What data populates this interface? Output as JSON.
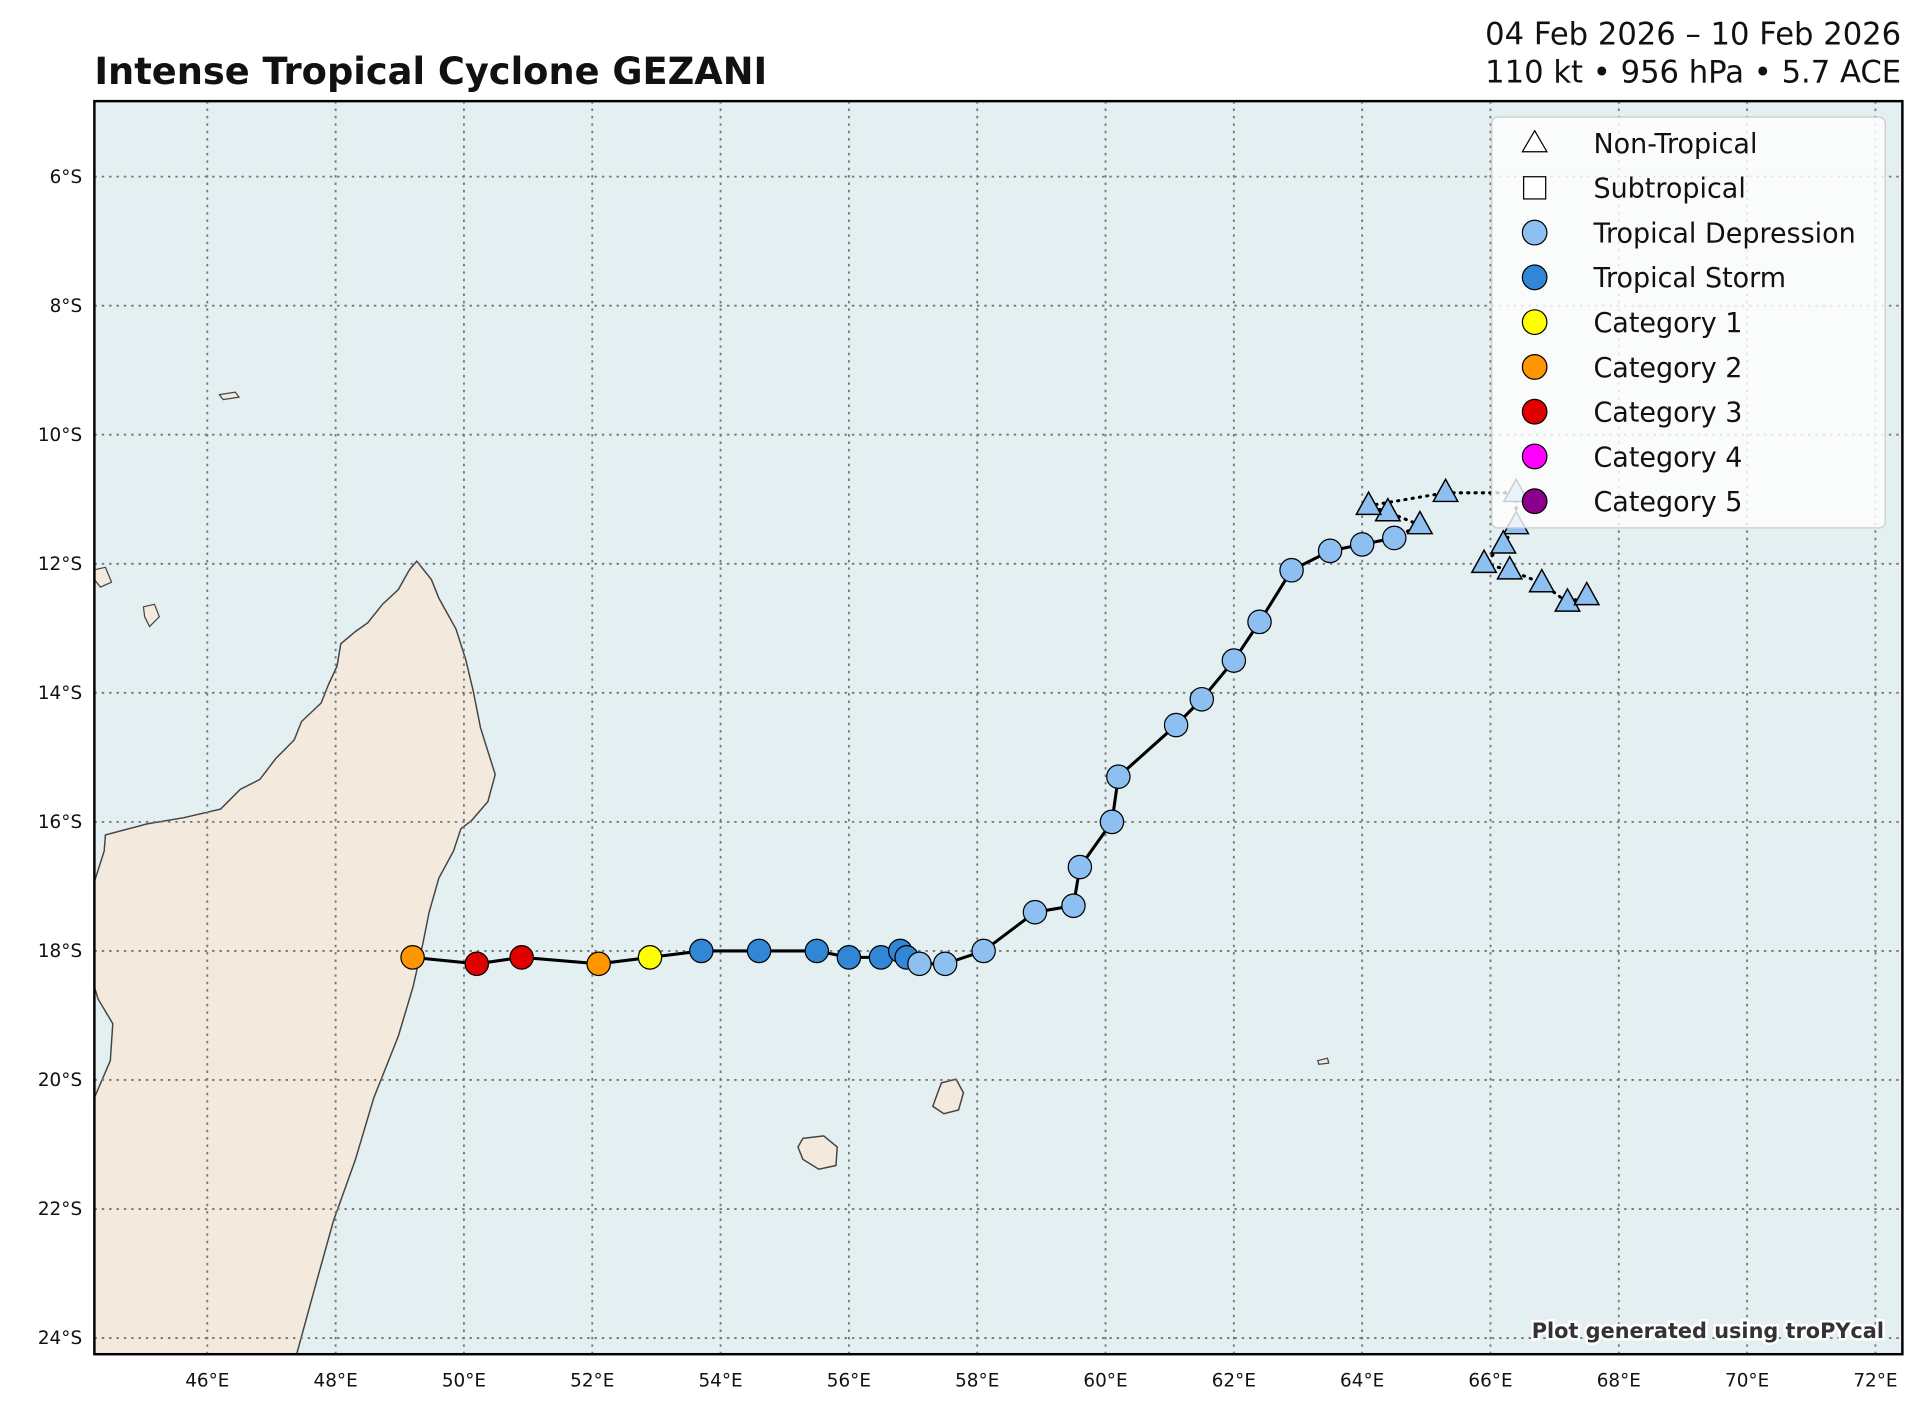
{
  "header": {
    "title": "Intense Tropical Cyclone GEZANI",
    "date_range": "04 Feb 2026 – 10 Feb 2026",
    "stats": "110 kt • 956 hPa • 5.7 ACE"
  },
  "credit": "Plot generated using troPYcal",
  "colors": {
    "ocean": "#e3eff1",
    "land": "#f3eadd",
    "track": "#000000"
  },
  "legend": [
    {
      "label": "Non-Tropical",
      "marker": "triangle",
      "color": "#ffffff"
    },
    {
      "label": "Subtropical",
      "marker": "square",
      "color": "#ffffff"
    },
    {
      "label": "Tropical Depression",
      "marker": "circle",
      "color": "#8dc0f0"
    },
    {
      "label": "Tropical Storm",
      "marker": "circle",
      "color": "#3186d6"
    },
    {
      "label": "Category 1",
      "marker": "circle",
      "color": "#ffff00"
    },
    {
      "label": "Category 2",
      "marker": "circle",
      "color": "#ff9600"
    },
    {
      "label": "Category 3",
      "marker": "circle",
      "color": "#e00000"
    },
    {
      "label": "Category 4",
      "marker": "circle",
      "color": "#ff00ff"
    },
    {
      "label": "Category 5",
      "marker": "circle",
      "color": "#8b008b"
    }
  ],
  "chart_data": {
    "type": "scatter",
    "title": "Intense Tropical Cyclone GEZANI",
    "xlim": [
      44.24,
      72.42
    ],
    "ylim": [
      -24.25,
      -4.83
    ],
    "grid": true,
    "legend_position": "top-right",
    "x_ticks": [
      "46°E",
      "48°E",
      "50°E",
      "52°E",
      "54°E",
      "56°E",
      "58°E",
      "60°E",
      "62°E",
      "64°E",
      "66°E",
      "68°E",
      "70°E",
      "72°E"
    ],
    "x_tick_values": [
      46,
      48,
      50,
      52,
      54,
      56,
      58,
      60,
      62,
      64,
      66,
      68,
      70,
      72
    ],
    "y_ticks": [
      "6°S",
      "8°S",
      "10°S",
      "12°S",
      "14°S",
      "16°S",
      "18°S",
      "20°S",
      "22°S",
      "24°S"
    ],
    "y_tick_values": [
      -6,
      -8,
      -10,
      -12,
      -14,
      -16,
      -18,
      -20,
      -22,
      -24
    ],
    "track": [
      {
        "lon": 49.2,
        "lat": -18.1,
        "cat": "Category 2"
      },
      {
        "lon": 50.2,
        "lat": -18.2,
        "cat": "Category 3"
      },
      {
        "lon": 50.9,
        "lat": -18.1,
        "cat": "Category 3"
      },
      {
        "lon": 52.1,
        "lat": -18.2,
        "cat": "Category 2"
      },
      {
        "lon": 52.9,
        "lat": -18.1,
        "cat": "Category 1"
      },
      {
        "lon": 53.7,
        "lat": -18.0,
        "cat": "Tropical Storm"
      },
      {
        "lon": 54.6,
        "lat": -18.0,
        "cat": "Tropical Storm"
      },
      {
        "lon": 55.5,
        "lat": -18.0,
        "cat": "Tropical Storm"
      },
      {
        "lon": 56.0,
        "lat": -18.1,
        "cat": "Tropical Storm"
      },
      {
        "lon": 56.5,
        "lat": -18.1,
        "cat": "Tropical Storm"
      },
      {
        "lon": 56.8,
        "lat": -18.0,
        "cat": "Tropical Storm"
      },
      {
        "lon": 56.9,
        "lat": -18.1,
        "cat": "Tropical Storm"
      },
      {
        "lon": 57.1,
        "lat": -18.2,
        "cat": "Tropical Depression"
      },
      {
        "lon": 57.5,
        "lat": -18.2,
        "cat": "Tropical Depression"
      },
      {
        "lon": 58.1,
        "lat": -18.0,
        "cat": "Tropical Depression"
      },
      {
        "lon": 58.9,
        "lat": -17.4,
        "cat": "Tropical Depression"
      },
      {
        "lon": 59.5,
        "lat": -17.3,
        "cat": "Tropical Depression"
      },
      {
        "lon": 59.6,
        "lat": -16.7,
        "cat": "Tropical Depression"
      },
      {
        "lon": 60.1,
        "lat": -16.0,
        "cat": "Tropical Depression"
      },
      {
        "lon": 60.2,
        "lat": -15.3,
        "cat": "Tropical Depression"
      },
      {
        "lon": 61.1,
        "lat": -14.5,
        "cat": "Tropical Depression"
      },
      {
        "lon": 61.5,
        "lat": -14.1,
        "cat": "Tropical Depression"
      },
      {
        "lon": 62.0,
        "lat": -13.5,
        "cat": "Tropical Depression"
      },
      {
        "lon": 62.4,
        "lat": -12.9,
        "cat": "Tropical Depression"
      },
      {
        "lon": 62.9,
        "lat": -12.1,
        "cat": "Tropical Depression"
      },
      {
        "lon": 63.5,
        "lat": -11.8,
        "cat": "Tropical Depression"
      },
      {
        "lon": 64.0,
        "lat": -11.7,
        "cat": "Tropical Depression"
      },
      {
        "lon": 64.5,
        "lat": -11.6,
        "cat": "Tropical Depression"
      },
      {
        "lon": 64.9,
        "lat": -11.4,
        "cat": "Non-Tropical"
      },
      {
        "lon": 64.4,
        "lat": -11.2,
        "cat": "Non-Tropical"
      },
      {
        "lon": 64.1,
        "lat": -11.1,
        "cat": "Non-Tropical"
      },
      {
        "lon": 65.3,
        "lat": -10.9,
        "cat": "Non-Tropical"
      },
      {
        "lon": 66.4,
        "lat": -10.9,
        "cat": "Non-Tropical"
      },
      {
        "lon": 66.4,
        "lat": -11.4,
        "cat": "Non-Tropical"
      },
      {
        "lon": 66.2,
        "lat": -11.7,
        "cat": "Non-Tropical"
      },
      {
        "lon": 65.9,
        "lat": -12.0,
        "cat": "Non-Tropical"
      },
      {
        "lon": 66.3,
        "lat": -12.1,
        "cat": "Non-Tropical"
      },
      {
        "lon": 66.8,
        "lat": -12.3,
        "cat": "Non-Tropical"
      },
      {
        "lon": 67.2,
        "lat": -12.6,
        "cat": "Non-Tropical"
      },
      {
        "lon": 67.5,
        "lat": -12.5,
        "cat": "Non-Tropical"
      }
    ]
  }
}
